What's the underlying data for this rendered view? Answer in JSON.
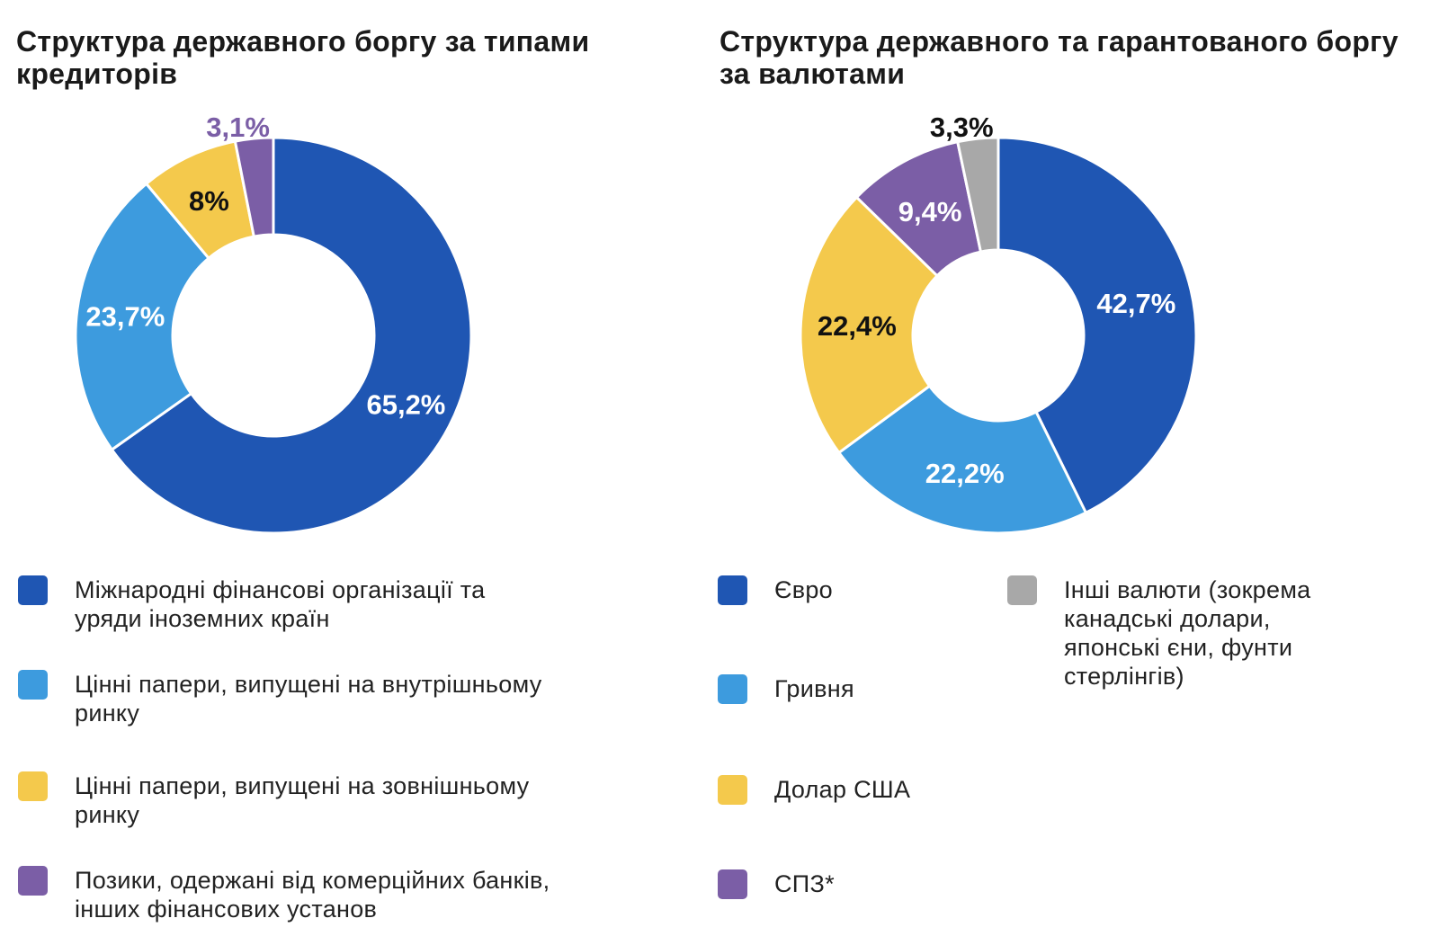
{
  "chart_data": [
    {
      "type": "pie",
      "title": "Структура державного боргу за типами кредиторів",
      "categories": [
        "Міжнародні фінансові організації та уряди іноземних країн",
        "Цінні папери, випущені на внутрішньому ринку",
        "Цінні папери, випущені на зовнішньому ринку",
        "Позики, одержані від комерційних банків, інших фінансових установ"
      ],
      "values": [
        65.2,
        23.7,
        8,
        3.1
      ],
      "labels": [
        "65,2%",
        "23,7%",
        "8%",
        "3,1%"
      ],
      "colors": [
        "#1f56b3",
        "#3d9bde",
        "#f4c94c",
        "#7b5ea6"
      ],
      "legend": [
        "Міжнародні фінансові організації та уряди іноземних країн",
        "Цінні папери, випущені на внутрішньому ринку",
        "Цінні папери, випущені на зовнішньому ринку",
        "Позики, одержані від комерційних банків, інших фінансових установ"
      ],
      "legend_placement": "bottom"
    },
    {
      "type": "pie",
      "title": "Структура державного та гарантованого боргу за валютами",
      "categories": [
        "Євро",
        "Гривня",
        "Долар США",
        "СПЗ*",
        "Інші валюти (зокрема канадські долари, японські єни, фунти стерлінгів)"
      ],
      "values": [
        42.7,
        22.2,
        22.4,
        9.4,
        3.3
      ],
      "labels": [
        "42,7%",
        "22,2%",
        "22,4%",
        "9,4%",
        "3,3%"
      ],
      "colors": [
        "#1f56b3",
        "#3d9bde",
        "#f4c94c",
        "#7b5ea6",
        "#a8a8a8"
      ],
      "legend": [
        "Євро",
        "Гривня",
        "Долар США",
        "СПЗ*",
        "Інші валюти (зокрема канадські долари, японські єни, фунти стерлінгів)"
      ],
      "legend_placement": "bottom"
    }
  ]
}
